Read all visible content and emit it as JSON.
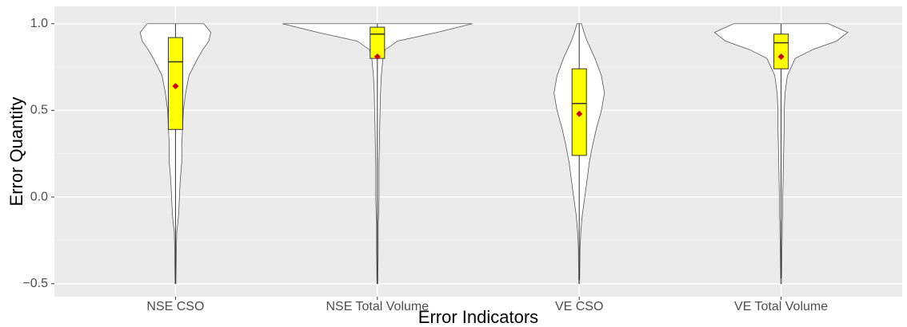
{
  "chart_data": {
    "type": "violin",
    "xlabel": "Error Indicators",
    "ylabel": "Error Quantity",
    "categories": [
      "NSE CSO",
      "NSE Total Volume",
      "VE CSO",
      "VE Total Volume"
    ],
    "ylim": [
      -0.575,
      1.1
    ],
    "yticks": [
      {
        "value": -0.5,
        "label": "−0.5"
      },
      {
        "value": 0,
        "label": "0.0"
      },
      0.5,
      {
        "value": 1,
        "label": "1.0"
      }
    ],
    "minor_yticks": [
      -0.25,
      0.25,
      0.75
    ],
    "grid": true,
    "violin_color": "#ffffff",
    "box_color": "#ffff00",
    "mean_color": "#cc0000",
    "density_y": [
      -0.5,
      -0.3,
      -0.2,
      -0.15,
      -0.1,
      0,
      0.1,
      0.2,
      0.3,
      0.4,
      0.5,
      0.6,
      0.7,
      0.8,
      0.85,
      0.9,
      0.95,
      1.0
    ],
    "violins": [
      {
        "density": [
          0.004,
          0.008,
          0.012,
          0.023,
          0.031,
          0.039,
          0.047,
          0.062,
          0.062,
          0.07,
          0.078,
          0.1,
          0.133,
          0.22,
          0.27,
          0.33,
          0.35,
          0.28
        ]
      },
      {
        "density": [
          0.004,
          0.008,
          0.008,
          0.008,
          0.012,
          0.016,
          0.016,
          0.016,
          0.02,
          0.023,
          0.027,
          0.031,
          0.039,
          0.055,
          0.078,
          0.2,
          0.59,
          0.94
        ]
      },
      {
        "density": [
          0.004,
          0.008,
          0.016,
          0.023,
          0.031,
          0.055,
          0.078,
          0.1,
          0.133,
          0.172,
          0.22,
          0.25,
          0.22,
          0.156,
          0.117,
          0.078,
          0.047,
          0.023
        ]
      },
      {
        "density": [
          0.004,
          0.008,
          0.012,
          0.012,
          0.016,
          0.016,
          0.02,
          0.023,
          0.027,
          0.031,
          0.031,
          0.039,
          0.062,
          0.14,
          0.31,
          0.55,
          0.66,
          0.47
        ]
      }
    ],
    "boxes": [
      {
        "min": -0.5,
        "q1": 0.39,
        "median": 0.78,
        "q3": 0.92,
        "max": 1.0,
        "mean": 0.64
      },
      {
        "min": -0.5,
        "q1": 0.8,
        "median": 0.94,
        "q3": 0.98,
        "max": 1.0,
        "mean": 0.81
      },
      {
        "min": -0.48,
        "q1": 0.24,
        "median": 0.54,
        "q3": 0.74,
        "max": 1.0,
        "mean": 0.48
      },
      {
        "min": -0.47,
        "q1": 0.74,
        "median": 0.89,
        "q3": 0.94,
        "max": 1.0,
        "mean": 0.81
      }
    ]
  }
}
